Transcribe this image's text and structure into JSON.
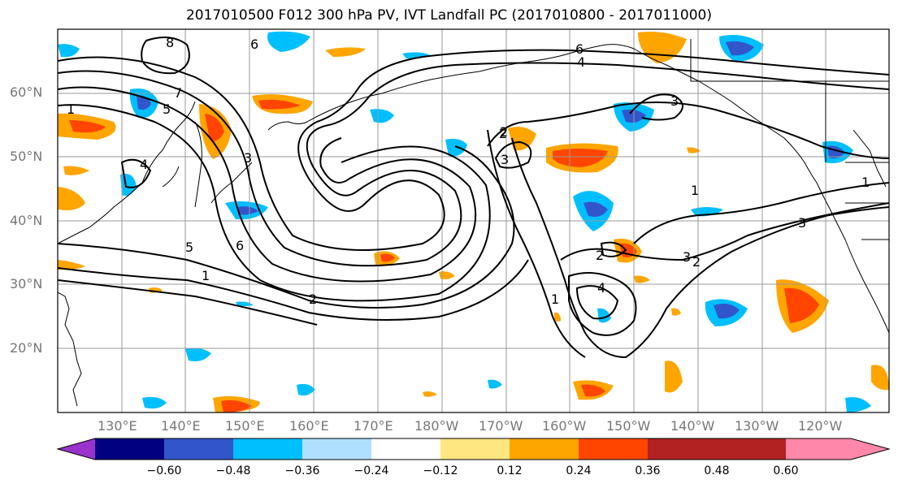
{
  "title": "2017010500 F012 300 hPa PV, IVT Landfall PC (2017010800 - 2017011000)",
  "lat_labels": [
    "60°N",
    "50°N",
    "40°N",
    "30°N",
    "20°N"
  ],
  "lon_labels": [
    "130°E",
    "140°E",
    "150°E",
    "160°E",
    "170°E",
    "180°W",
    "170°W",
    "160°W",
    "150°W",
    "140°W",
    "130°W",
    "120°W"
  ],
  "colorbar": {
    "colors": [
      "#9933cc",
      "#000080",
      "#3355cc",
      "#00bfff",
      "#b0e0ff",
      "#ffffff",
      "#ffe680",
      "#ffa500",
      "#ff4500",
      "#b22222",
      "#ff88aa"
    ],
    "ticks": [
      "−0.60",
      "−0.48",
      "−0.36",
      "−0.24",
      "−0.12",
      "0.12",
      "0.24",
      "0.36",
      "0.48",
      "0.60"
    ]
  },
  "contour_labels": [
    "8",
    "6",
    "7",
    "5",
    "1",
    "4",
    "3",
    "6",
    "2",
    "1",
    "6",
    "5",
    "2",
    "1",
    "3",
    "4",
    "3",
    "2",
    "2",
    "4",
    "1",
    "2",
    "3",
    "1",
    "3"
  ],
  "colors": {
    "grid": "#999999",
    "contour": "#000000",
    "coast": "#000000"
  }
}
